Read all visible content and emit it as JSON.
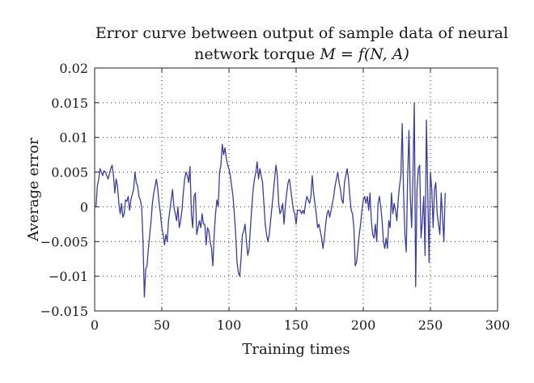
{
  "chart_data": {
    "type": "line",
    "title_line1": "Error curve between output of sample data of neural",
    "title_line2_prefix": "network torque ",
    "title_formula": "M = f(N, A)",
    "xlabel": "Training times",
    "ylabel": "Average error",
    "xlim": [
      0,
      300
    ],
    "ylim": [
      -0.015,
      0.02
    ],
    "x_ticks": [
      0,
      50,
      100,
      150,
      200,
      250,
      300
    ],
    "y_ticks": [
      -0.015,
      -0.01,
      -0.005,
      0,
      0.005,
      0.01,
      0.015,
      0.02
    ],
    "y_tick_labels": [
      "−0.015",
      "−0.01",
      "−0.005",
      "0",
      "0.005",
      "0.01",
      "0.015",
      "0.02"
    ],
    "x_tick_labels": [
      "0",
      "50",
      "100",
      "150",
      "200",
      "250",
      "300"
    ],
    "grid": true,
    "line_color": "#3c3ca0",
    "series": [
      {
        "x_start": 1,
        "x_step": 1,
        "values": [
          0.0,
          0.003,
          0.004,
          0.0055,
          0.005,
          0.0045,
          0.0052,
          0.005,
          0.0045,
          0.004,
          0.0048,
          0.0055,
          0.006,
          0.0045,
          0.002,
          0.004,
          0.003,
          0.0005,
          -0.001,
          0.0005,
          -0.0015,
          -0.001,
          0.001,
          0.0008,
          0.0015,
          -0.0005,
          0.001,
          0.0018,
          0.0025,
          0.005,
          0.0035,
          0.003,
          0.0015,
          0.001,
          0.0,
          -0.005,
          -0.013,
          -0.009,
          -0.0085,
          -0.006,
          -0.004,
          -0.002,
          0.0005,
          0.002,
          0.003,
          0.004,
          0.0025,
          0.0005,
          -0.001,
          -0.003,
          -0.004,
          -0.0055,
          -0.004,
          -0.005,
          -0.002,
          -0.0005,
          0.001,
          0.0025,
          0.0,
          -0.001,
          -0.002,
          0.0,
          -0.003,
          -0.002,
          -0.0005,
          0.002,
          0.004,
          0.005,
          0.0045,
          0.0035,
          0.0058,
          -0.001,
          -0.003,
          0.0015,
          0.002,
          -0.004,
          -0.003,
          -0.002,
          -0.003,
          -0.001,
          -0.0025,
          -0.0025,
          -0.0055,
          -0.003,
          -0.0035,
          -0.005,
          -0.006,
          -0.0085,
          -0.004,
          -0.001,
          0.001,
          0.0,
          0.005,
          0.006,
          0.009,
          0.0075,
          0.0085,
          0.007,
          0.006,
          0.0055,
          0.0045,
          0.003,
          0.0015,
          -0.001,
          -0.004,
          -0.008,
          -0.0095,
          -0.01,
          -0.0075,
          -0.004,
          -0.0035,
          -0.0025,
          -0.005,
          -0.007,
          -0.006,
          -0.003,
          0.0,
          0.0025,
          0.004,
          0.005,
          0.0065,
          0.004,
          0.0055,
          0.0045,
          0.0035,
          0.0005,
          -0.0025,
          -0.004,
          -0.005,
          -0.004,
          -0.002,
          0.0,
          0.002,
          0.004,
          0.006,
          0.0045,
          0.0005,
          -0.001,
          -0.0005,
          0.0005,
          -0.0025,
          0.0002,
          0.002,
          0.0035,
          0.004,
          0.0025,
          0.001,
          -0.0005,
          -0.001,
          -0.0025,
          -0.0005,
          -0.0005,
          -0.0005,
          -0.001,
          -0.0005,
          -0.001,
          0.0005,
          0.0015,
          0.001,
          0.0005,
          0.0015,
          0.0045,
          0.002,
          0.0005,
          -0.001,
          -0.003,
          -0.0025,
          -0.0035,
          -0.0045,
          -0.006,
          -0.0045,
          -0.0025,
          -0.001,
          -0.0005,
          -0.0015,
          -0.0005,
          0.0005,
          0.0015,
          0.003,
          0.004,
          0.005,
          0.0035,
          0.0025,
          0.001,
          0.0005,
          0.0035,
          0.0045,
          0.0055,
          0.004,
          0.0015,
          -0.0005,
          -0.001,
          -0.003,
          -0.0085,
          -0.008,
          -0.006,
          -0.004,
          -0.0025,
          -0.0005,
          0.001,
          0.0015,
          0.0005,
          0.0015,
          -0.0005,
          0.002,
          -0.002,
          -0.004,
          -0.0045,
          -0.0025,
          -0.005,
          0.0005,
          0.0015,
          0.0,
          -0.002,
          -0.005,
          -0.006,
          -0.0045,
          -0.006,
          -0.002,
          -0.003,
          0.002,
          -0.001,
          0.0005,
          -0.0005,
          -0.002,
          0.001,
          0.003,
          0.0045,
          0.012,
          0.002,
          -0.004,
          -0.0065,
          0.004,
          0.011,
          0.0015,
          -0.003,
          0.0045,
          0.015,
          -0.0115,
          0.0025,
          0.0055,
          0.006,
          -0.0045,
          -0.002,
          0.0015,
          -0.007,
          0.0125,
          0.002,
          -0.008,
          0.005,
          0.0025,
          -0.003,
          0.0025,
          0.0035,
          -0.001,
          -0.0025,
          -0.004,
          0.002,
          -0.0015,
          -0.005,
          0.002
        ]
      }
    ]
  }
}
